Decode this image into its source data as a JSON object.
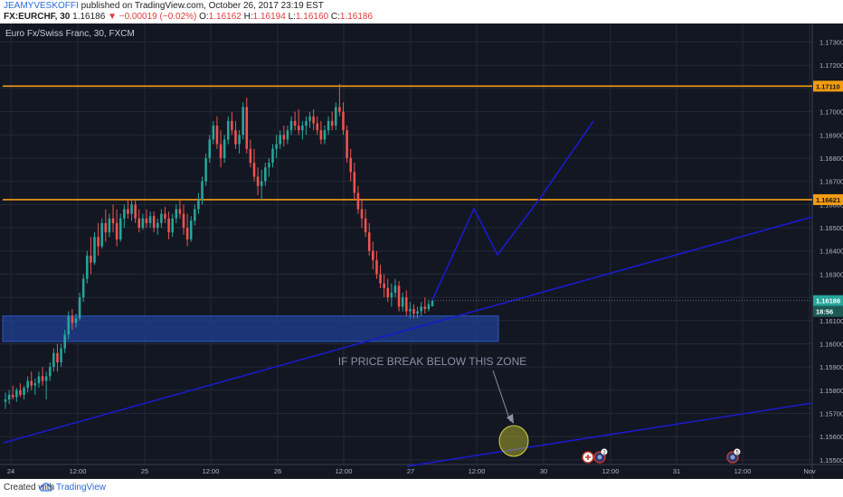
{
  "header": {
    "author": "JEAMYVESKOFFI",
    "published_text": "published on TradingView.com, October 26, 2017 23:19 EST",
    "symbol": "FX:EURCHF, 30",
    "last": "1.16186",
    "change": "▼ −0.00019 (−0.02%)",
    "ohlc": {
      "O": "1.16162",
      "H": "1.16194",
      "L": "1.16160",
      "C": "1.16186"
    }
  },
  "chart_title": "Euro Fx/Swiss Franc, 30, FXCM",
  "footer": {
    "created_with": "Created with",
    "brand": "TradingView"
  },
  "colors": {
    "background": "#131722",
    "grid": "#232838",
    "candle_up": "#26a69a",
    "candle_down": "#ef5350",
    "resistance": "#f39c12",
    "trendline": "#1a1acc",
    "zone": "#1f3d8c",
    "highlight": "#c8c830"
  },
  "chart_data": {
    "type": "candlestick",
    "y_axis": {
      "range": [
        1.1548,
        1.1738
      ],
      "ticks": [
        "1.17300",
        "1.17200",
        "1.17100",
        "1.17000",
        "1.16900",
        "1.16800",
        "1.16700",
        "1.16600",
        "1.16500",
        "1.16400",
        "1.16300",
        "1.16200",
        "1.16100",
        "1.16000",
        "1.15900",
        "1.15800",
        "1.15700",
        "1.15600",
        "1.15500"
      ]
    },
    "x_axis": {
      "labels": [
        "24",
        "12:00",
        "25",
        "12:00",
        "26",
        "12:00",
        "27",
        "12:00",
        "30",
        "12:00",
        "31",
        "12:00",
        "Nov"
      ]
    },
    "price_labels": {
      "upper_resistance": "1.17110",
      "lower_resistance": "1.16621",
      "last_price": "1.16186",
      "countdown": "18:56"
    },
    "levels": {
      "upper_resistance": 1.1711,
      "lower_resistance": 1.16621,
      "zone_top": 1.1612,
      "zone_bottom": 1.1601
    },
    "annotation": "IF PRICE BREAK BELOW THIS ZONE",
    "event_markers": [
      "2",
      "5"
    ],
    "candles": [
      [
        1.1575,
        1.1579,
        1.1572,
        1.1576
      ],
      [
        1.1576,
        1.158,
        1.1574,
        1.1578
      ],
      [
        1.1578,
        1.1582,
        1.1576,
        1.1577
      ],
      [
        1.1577,
        1.1581,
        1.1575,
        1.158
      ],
      [
        1.158,
        1.1583,
        1.1577,
        1.1578
      ],
      [
        1.1578,
        1.1582,
        1.1576,
        1.1581
      ],
      [
        1.1581,
        1.1586,
        1.1579,
        1.1584
      ],
      [
        1.1584,
        1.1588,
        1.158,
        1.1582
      ],
      [
        1.1582,
        1.1585,
        1.1578,
        1.1583
      ],
      [
        1.1583,
        1.1588,
        1.1581,
        1.1586
      ],
      [
        1.1586,
        1.159,
        1.1582,
        1.1584
      ],
      [
        1.1584,
        1.1588,
        1.1576,
        1.1586
      ],
      [
        1.1586,
        1.1592,
        1.1584,
        1.159
      ],
      [
        1.159,
        1.1598,
        1.1588,
        1.1596
      ],
      [
        1.1596,
        1.16,
        1.1588,
        1.1592
      ],
      [
        1.1592,
        1.16,
        1.159,
        1.1598
      ],
      [
        1.1598,
        1.1606,
        1.1596,
        1.1604
      ],
      [
        1.1604,
        1.1614,
        1.1602,
        1.1612
      ],
      [
        1.1612,
        1.1615,
        1.1606,
        1.1609
      ],
      [
        1.1609,
        1.1613,
        1.1607,
        1.1611
      ],
      [
        1.1611,
        1.1622,
        1.161,
        1.162
      ],
      [
        1.162,
        1.163,
        1.1618,
        1.1628
      ],
      [
        1.1628,
        1.164,
        1.1626,
        1.1638
      ],
      [
        1.1638,
        1.1646,
        1.163,
        1.1635
      ],
      [
        1.1635,
        1.1648,
        1.1634,
        1.1646
      ],
      [
        1.1646,
        1.1652,
        1.1638,
        1.1642
      ],
      [
        1.1642,
        1.1654,
        1.1641,
        1.1652
      ],
      [
        1.1652,
        1.1658,
        1.1644,
        1.1648
      ],
      [
        1.1648,
        1.1656,
        1.1646,
        1.1654
      ],
      [
        1.1654,
        1.166,
        1.1648,
        1.1652
      ],
      [
        1.1652,
        1.1658,
        1.1642,
        1.1645
      ],
      [
        1.1645,
        1.1656,
        1.1644,
        1.1654
      ],
      [
        1.1654,
        1.166,
        1.165,
        1.1658
      ],
      [
        1.1658,
        1.1662,
        1.1654,
        1.1656
      ],
      [
        1.1656,
        1.1662,
        1.1653,
        1.166
      ],
      [
        1.166,
        1.1662,
        1.1652,
        1.1654
      ],
      [
        1.1654,
        1.1658,
        1.1648,
        1.165
      ],
      [
        1.165,
        1.1656,
        1.1649,
        1.1654
      ],
      [
        1.1654,
        1.1658,
        1.165,
        1.1652
      ],
      [
        1.1652,
        1.1657,
        1.165,
        1.1655
      ],
      [
        1.1655,
        1.1657,
        1.1648,
        1.165
      ],
      [
        1.165,
        1.1654,
        1.1647,
        1.1652
      ],
      [
        1.1652,
        1.1658,
        1.165,
        1.1656
      ],
      [
        1.1656,
        1.1659,
        1.1652,
        1.1654
      ],
      [
        1.1654,
        1.1657,
        1.1645,
        1.1648
      ],
      [
        1.1648,
        1.1656,
        1.1646,
        1.1654
      ],
      [
        1.1654,
        1.166,
        1.1652,
        1.1658
      ],
      [
        1.1658,
        1.1662,
        1.1654,
        1.1656
      ],
      [
        1.1656,
        1.166,
        1.1647,
        1.165
      ],
      [
        1.165,
        1.1656,
        1.1642,
        1.1645
      ],
      [
        1.1645,
        1.1655,
        1.1644,
        1.1653
      ],
      [
        1.1653,
        1.166,
        1.1651,
        1.1658
      ],
      [
        1.1658,
        1.1665,
        1.1656,
        1.1662
      ],
      [
        1.1662,
        1.1672,
        1.166,
        1.167
      ],
      [
        1.167,
        1.1682,
        1.1668,
        1.168
      ],
      [
        1.168,
        1.169,
        1.1678,
        1.1688
      ],
      [
        1.1688,
        1.1696,
        1.1686,
        1.1694
      ],
      [
        1.1694,
        1.1698,
        1.1684,
        1.1686
      ],
      [
        1.1686,
        1.1692,
        1.1676,
        1.168
      ],
      [
        1.168,
        1.169,
        1.1678,
        1.1688
      ],
      [
        1.1688,
        1.1698,
        1.1686,
        1.1696
      ],
      [
        1.1696,
        1.17,
        1.169,
        1.1692
      ],
      [
        1.1692,
        1.1696,
        1.1684,
        1.1686
      ],
      [
        1.1686,
        1.1692,
        1.1682,
        1.169
      ],
      [
        1.169,
        1.1704,
        1.1688,
        1.1702
      ],
      [
        1.1702,
        1.1706,
        1.1682,
        1.1684
      ],
      [
        1.1684,
        1.1688,
        1.1676,
        1.1678
      ],
      [
        1.1678,
        1.1684,
        1.167,
        1.1672
      ],
      [
        1.1672,
        1.1676,
        1.1664,
        1.1668
      ],
      [
        1.1668,
        1.1675,
        1.1662,
        1.167
      ],
      [
        1.167,
        1.1678,
        1.1668,
        1.1676
      ],
      [
        1.1676,
        1.168,
        1.1672,
        1.1678
      ],
      [
        1.1678,
        1.1686,
        1.1676,
        1.1684
      ],
      [
        1.1684,
        1.169,
        1.168,
        1.1686
      ],
      [
        1.1686,
        1.1692,
        1.1684,
        1.169
      ],
      [
        1.169,
        1.1694,
        1.1685,
        1.1688
      ],
      [
        1.1688,
        1.1694,
        1.1686,
        1.1692
      ],
      [
        1.1692,
        1.1698,
        1.169,
        1.1696
      ],
      [
        1.1696,
        1.17,
        1.1692,
        1.1694
      ],
      [
        1.1694,
        1.1701,
        1.169,
        1.1692
      ],
      [
        1.1692,
        1.1696,
        1.1688,
        1.1694
      ],
      [
        1.1694,
        1.1698,
        1.169,
        1.1696
      ],
      [
        1.1696,
        1.17,
        1.1693,
        1.1698
      ],
      [
        1.1698,
        1.1701,
        1.1692,
        1.1695
      ],
      [
        1.1695,
        1.1698,
        1.169,
        1.1692
      ],
      [
        1.1692,
        1.1696,
        1.1686,
        1.1688
      ],
      [
        1.1688,
        1.1694,
        1.1686,
        1.1692
      ],
      [
        1.1692,
        1.1698,
        1.169,
        1.1696
      ],
      [
        1.1696,
        1.17,
        1.1692,
        1.1694
      ],
      [
        1.1694,
        1.1704,
        1.1692,
        1.1702
      ],
      [
        1.1702,
        1.1712,
        1.1698,
        1.17
      ],
      [
        1.17,
        1.1704,
        1.169,
        1.1692
      ],
      [
        1.1692,
        1.1694,
        1.1678,
        1.168
      ],
      [
        1.168,
        1.1684,
        1.167,
        1.1674
      ],
      [
        1.1674,
        1.1678,
        1.1662,
        1.1665
      ],
      [
        1.1665,
        1.1668,
        1.1656,
        1.1658
      ],
      [
        1.1658,
        1.1662,
        1.165,
        1.1654
      ],
      [
        1.1654,
        1.1658,
        1.1646,
        1.1648
      ],
      [
        1.1648,
        1.1652,
        1.1638,
        1.164
      ],
      [
        1.164,
        1.1644,
        1.1632,
        1.1636
      ],
      [
        1.1636,
        1.164,
        1.1628,
        1.163
      ],
      [
        1.163,
        1.1634,
        1.1624,
        1.1626
      ],
      [
        1.1626,
        1.163,
        1.162,
        1.1624
      ],
      [
        1.1624,
        1.1628,
        1.1618,
        1.162
      ],
      [
        1.162,
        1.1626,
        1.1616,
        1.1622
      ],
      [
        1.1622,
        1.1628,
        1.162,
        1.1625
      ],
      [
        1.1625,
        1.1627,
        1.1614,
        1.1616
      ],
      [
        1.1616,
        1.1622,
        1.1614,
        1.162
      ],
      [
        1.162,
        1.1623,
        1.1612,
        1.1614
      ],
      [
        1.1614,
        1.1618,
        1.1611,
        1.1615
      ],
      [
        1.1615,
        1.1617,
        1.1611,
        1.1613
      ],
      [
        1.1613,
        1.1616,
        1.1611,
        1.1614
      ],
      [
        1.1614,
        1.1618,
        1.1612,
        1.1616
      ],
      [
        1.1616,
        1.162,
        1.1613,
        1.1615
      ],
      [
        1.1615,
        1.1619,
        1.1614,
        1.1617
      ],
      [
        1.16162,
        1.16194,
        1.1616,
        1.16186
      ]
    ]
  }
}
